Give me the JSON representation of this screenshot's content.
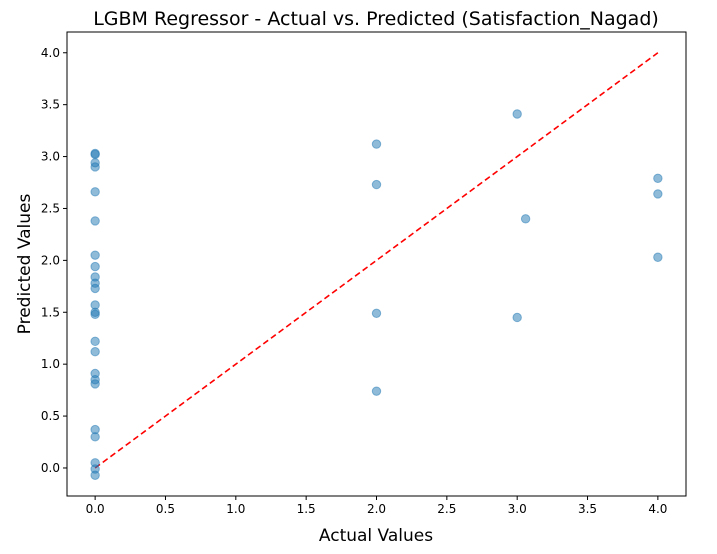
{
  "chart_data": {
    "type": "scatter",
    "title": "LGBM Regressor - Actual vs. Predicted (Satisfaction_Nagad)",
    "xlabel": "Actual Values",
    "ylabel": "Predicted Values",
    "xlim": [
      -0.2,
      4.2
    ],
    "ylim": [
      -0.27,
      4.2
    ],
    "xticks": [
      "0.0",
      "0.5",
      "1.0",
      "1.5",
      "2.0",
      "2.5",
      "3.0",
      "3.5",
      "4.0"
    ],
    "yticks": [
      "0.0",
      "0.5",
      "1.0",
      "1.5",
      "2.0",
      "2.5",
      "3.0",
      "3.5",
      "4.0"
    ],
    "grid": false,
    "series": [
      {
        "color": "#1f77b4",
        "points": [
          {
            "x": 0,
            "y": 3.03
          },
          {
            "x": 0,
            "y": 3.02
          },
          {
            "x": 0,
            "y": 2.94
          },
          {
            "x": 0,
            "y": 2.9
          },
          {
            "x": 0,
            "y": 2.66
          },
          {
            "x": 0,
            "y": 2.38
          },
          {
            "x": 0,
            "y": 2.05
          },
          {
            "x": 0,
            "y": 1.94
          },
          {
            "x": 0,
            "y": 1.84
          },
          {
            "x": 0,
            "y": 1.78
          },
          {
            "x": 0,
            "y": 1.73
          },
          {
            "x": 0,
            "y": 1.57
          },
          {
            "x": 0,
            "y": 1.5
          },
          {
            "x": 0,
            "y": 1.48
          },
          {
            "x": 0,
            "y": 1.22
          },
          {
            "x": 0,
            "y": 1.12
          },
          {
            "x": 0,
            "y": 0.91
          },
          {
            "x": 0,
            "y": 0.85
          },
          {
            "x": 0,
            "y": 0.81
          },
          {
            "x": 0,
            "y": 0.37
          },
          {
            "x": 0,
            "y": 0.3
          },
          {
            "x": 0,
            "y": 0.05
          },
          {
            "x": 0,
            "y": -0.01
          },
          {
            "x": 0,
            "y": -0.07
          },
          {
            "x": 2,
            "y": 3.12
          },
          {
            "x": 2,
            "y": 2.73
          },
          {
            "x": 2,
            "y": 1.49
          },
          {
            "x": 2,
            "y": 0.74
          },
          {
            "x": 3,
            "y": 3.41
          },
          {
            "x": 3.06,
            "y": 2.4
          },
          {
            "x": 3,
            "y": 1.45
          },
          {
            "x": 4,
            "y": 2.79
          },
          {
            "x": 4,
            "y": 2.64
          },
          {
            "x": 4,
            "y": 2.03
          }
        ]
      }
    ],
    "reference_line": {
      "color": "#ff0000",
      "style": "dashed",
      "from": [
        0,
        0
      ],
      "to": [
        4,
        4
      ]
    }
  }
}
